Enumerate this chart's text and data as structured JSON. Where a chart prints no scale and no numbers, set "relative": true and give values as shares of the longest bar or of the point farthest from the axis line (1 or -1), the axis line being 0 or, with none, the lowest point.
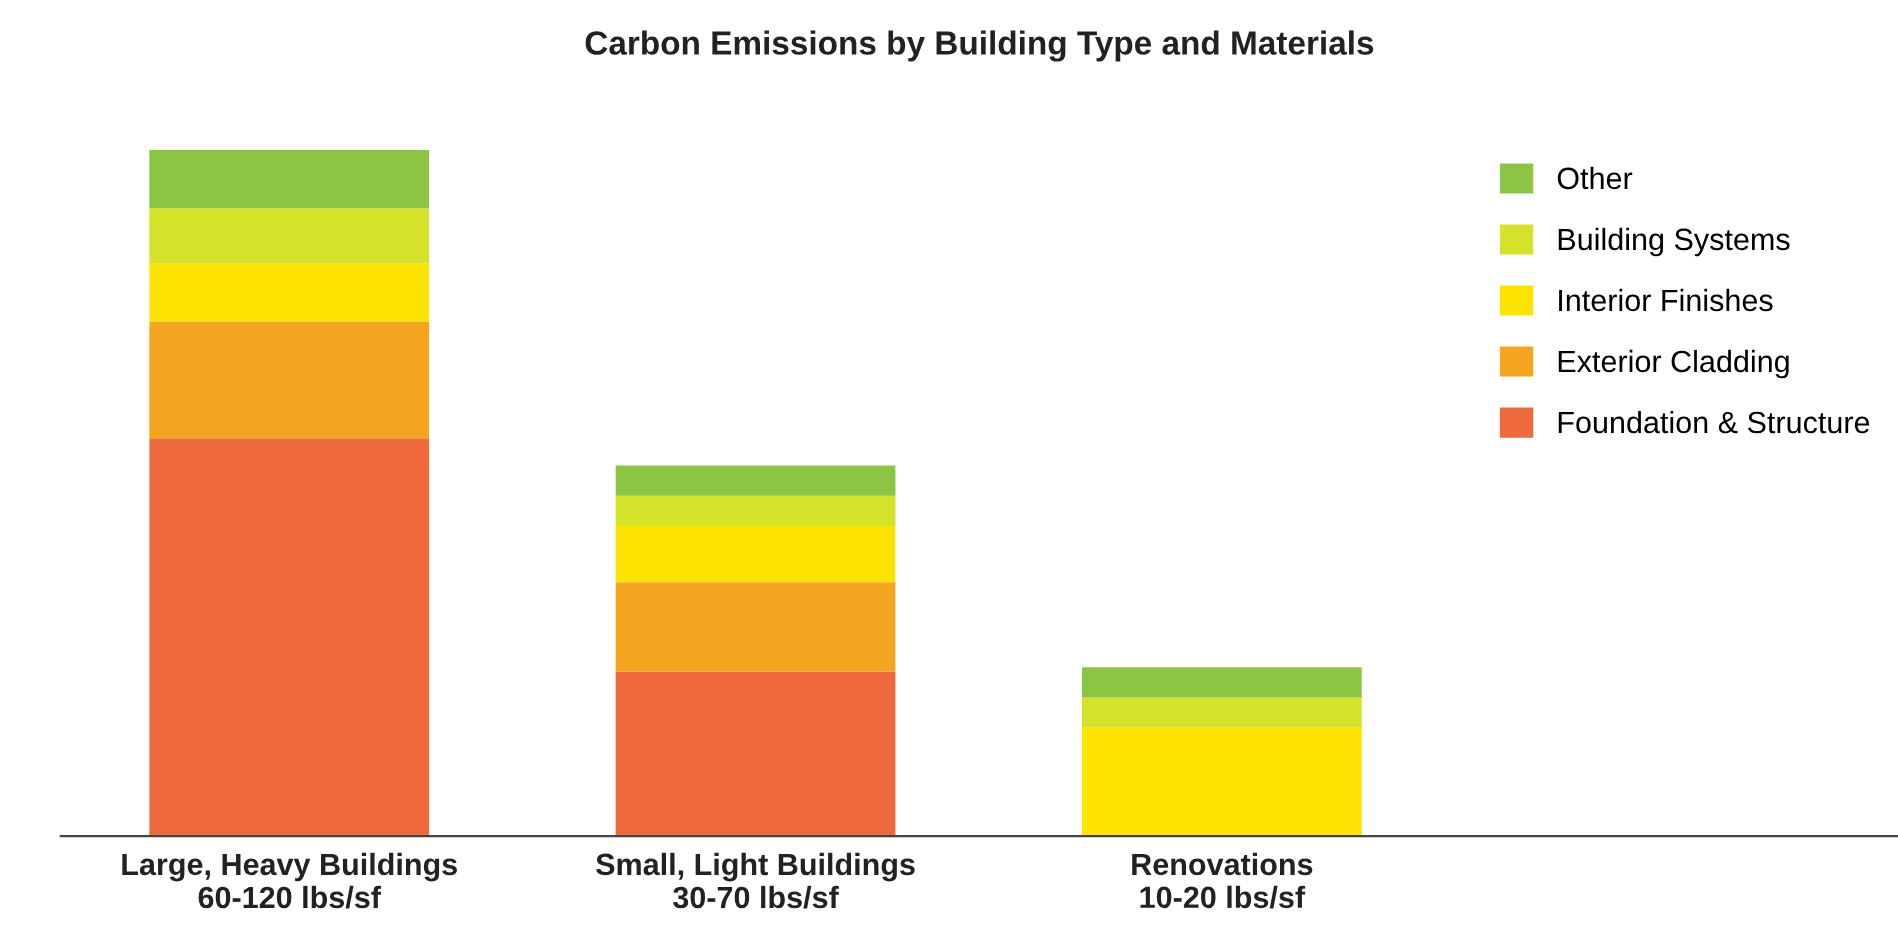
{
  "chart_data": {
    "type": "bar",
    "title": "Carbon Emissions by Building Type and Materials",
    "relative": true,
    "stacked": true,
    "legend": "top right",
    "grid": false,
    "categories": [
      "Large, Heavy Buildings\n60-120 lbs/sf",
      "Small, Light Buildings\n30-70 lbs/sf",
      "Renovations\n10-20 lbs/sf"
    ],
    "series": [
      {
        "name": "Foundation & Structure",
        "color": "#ee6a3c",
        "values": [
          0.58,
          0.24,
          0
        ]
      },
      {
        "name": "Exterior Cladding",
        "color": "#f6a520",
        "values": [
          0.17,
          0.13,
          0
        ]
      },
      {
        "name": "Interior Finishes",
        "color": "#fde302",
        "values": [
          0.085,
          0.082,
          0.158
        ]
      },
      {
        "name": "Building Systems",
        "color": "#d6e22a",
        "values": [
          0.08,
          0.044,
          0.044
        ]
      },
      {
        "name": "Other",
        "color": "#8cc543",
        "values": [
          0.085,
          0.044,
          0.044
        ]
      }
    ]
  }
}
